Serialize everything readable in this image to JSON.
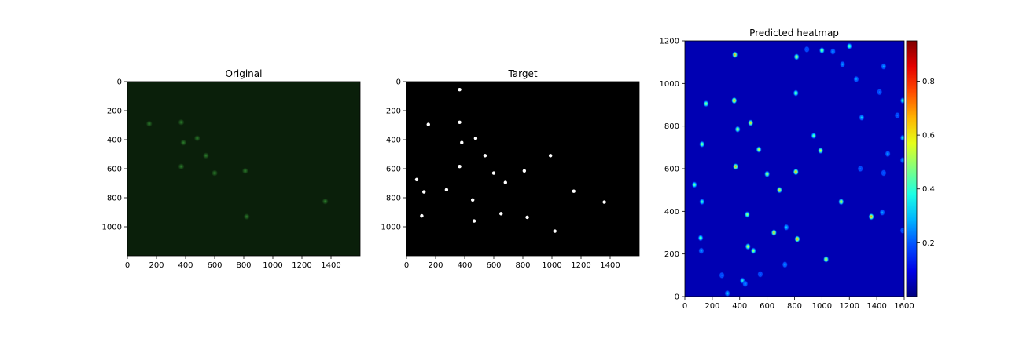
{
  "chart_data": [
    {
      "type": "image",
      "title": "Original",
      "xlim": [
        0,
        1600
      ],
      "ylim": [
        1200,
        0
      ],
      "x_ticks": [
        0,
        200,
        400,
        600,
        800,
        1000,
        1200,
        1400
      ],
      "y_ticks": [
        0,
        200,
        400,
        600,
        800,
        1000
      ],
      "background_color": "#0a1f0a",
      "spot_color": "#2f8a2f",
      "points": [
        {
          "x": 370,
          "y": 280
        },
        {
          "x": 385,
          "y": 420
        },
        {
          "x": 480,
          "y": 390
        },
        {
          "x": 370,
          "y": 585
        },
        {
          "x": 810,
          "y": 615
        },
        {
          "x": 820,
          "y": 930
        },
        {
          "x": 1360,
          "y": 825
        },
        {
          "x": 150,
          "y": 290
        },
        {
          "x": 600,
          "y": 630
        },
        {
          "x": 540,
          "y": 510
        }
      ]
    },
    {
      "type": "scatter",
      "title": "Target",
      "xlim": [
        0,
        1600
      ],
      "ylim": [
        1200,
        0
      ],
      "x_ticks": [
        0,
        200,
        400,
        600,
        800,
        1000,
        1200,
        1400
      ],
      "y_ticks": [
        0,
        200,
        400,
        600,
        800,
        1000
      ],
      "background_color": "#000000",
      "point_color": "#ffffff",
      "points": [
        {
          "x": 365,
          "y": 55
        },
        {
          "x": 150,
          "y": 295
        },
        {
          "x": 365,
          "y": 280
        },
        {
          "x": 380,
          "y": 420
        },
        {
          "x": 475,
          "y": 390
        },
        {
          "x": 540,
          "y": 510
        },
        {
          "x": 365,
          "y": 585
        },
        {
          "x": 600,
          "y": 630
        },
        {
          "x": 810,
          "y": 615
        },
        {
          "x": 990,
          "y": 510
        },
        {
          "x": 680,
          "y": 695
        },
        {
          "x": 70,
          "y": 675
        },
        {
          "x": 120,
          "y": 760
        },
        {
          "x": 275,
          "y": 745
        },
        {
          "x": 455,
          "y": 815
        },
        {
          "x": 1150,
          "y": 755
        },
        {
          "x": 1360,
          "y": 830
        },
        {
          "x": 105,
          "y": 925
        },
        {
          "x": 650,
          "y": 910
        },
        {
          "x": 830,
          "y": 935
        },
        {
          "x": 465,
          "y": 960
        },
        {
          "x": 1020,
          "y": 1030
        }
      ]
    },
    {
      "type": "heatmap",
      "title": "Predicted heatmap",
      "xlim": [
        0,
        1600
      ],
      "ylim": [
        0,
        1200
      ],
      "x_ticks": [
        0,
        200,
        400,
        600,
        800,
        1000,
        1200,
        1400,
        1600
      ],
      "y_ticks": [
        0,
        200,
        400,
        600,
        800,
        1000,
        1200
      ],
      "colormap": "jet",
      "colorbar_range": [
        0.0,
        0.95
      ],
      "colorbar_ticks": [
        "0.2",
        "0.4",
        "0.6",
        "0.8"
      ],
      "colorbar_tick_values": [
        0.2,
        0.4,
        0.6,
        0.8
      ],
      "points": [
        {
          "x": 365,
          "y": 1135,
          "v": 0.7
        },
        {
          "x": 155,
          "y": 905,
          "v": 0.55
        },
        {
          "x": 360,
          "y": 920,
          "v": 0.75
        },
        {
          "x": 385,
          "y": 785,
          "v": 0.6
        },
        {
          "x": 480,
          "y": 815,
          "v": 0.65
        },
        {
          "x": 125,
          "y": 715,
          "v": 0.55
        },
        {
          "x": 540,
          "y": 690,
          "v": 0.6
        },
        {
          "x": 370,
          "y": 610,
          "v": 0.7
        },
        {
          "x": 600,
          "y": 575,
          "v": 0.6
        },
        {
          "x": 810,
          "y": 585,
          "v": 0.75
        },
        {
          "x": 690,
          "y": 500,
          "v": 0.65
        },
        {
          "x": 70,
          "y": 525,
          "v": 0.5
        },
        {
          "x": 125,
          "y": 445,
          "v": 0.45
        },
        {
          "x": 455,
          "y": 385,
          "v": 0.55
        },
        {
          "x": 1140,
          "y": 445,
          "v": 0.65
        },
        {
          "x": 1360,
          "y": 375,
          "v": 0.75
        },
        {
          "x": 115,
          "y": 275,
          "v": 0.5
        },
        {
          "x": 650,
          "y": 300,
          "v": 0.7
        },
        {
          "x": 820,
          "y": 270,
          "v": 0.75
        },
        {
          "x": 460,
          "y": 235,
          "v": 0.6
        },
        {
          "x": 500,
          "y": 215,
          "v": 0.55
        },
        {
          "x": 1030,
          "y": 175,
          "v": 0.65
        },
        {
          "x": 815,
          "y": 1125,
          "v": 0.6
        },
        {
          "x": 1000,
          "y": 1155,
          "v": 0.55
        },
        {
          "x": 1200,
          "y": 1175,
          "v": 0.5
        },
        {
          "x": 810,
          "y": 955,
          "v": 0.55
        },
        {
          "x": 940,
          "y": 755,
          "v": 0.5
        },
        {
          "x": 990,
          "y": 685,
          "v": 0.6
        },
        {
          "x": 1590,
          "y": 920,
          "v": 0.45
        },
        {
          "x": 1590,
          "y": 745,
          "v": 0.4
        },
        {
          "x": 740,
          "y": 325,
          "v": 0.35
        },
        {
          "x": 420,
          "y": 75,
          "v": 0.4
        },
        {
          "x": 310,
          "y": 15,
          "v": 0.35
        },
        {
          "x": 1250,
          "y": 1020,
          "v": 0.3
        },
        {
          "x": 1290,
          "y": 840,
          "v": 0.35
        },
        {
          "x": 1440,
          "y": 395,
          "v": 0.3
        },
        {
          "x": 730,
          "y": 150,
          "v": 0.3
        },
        {
          "x": 440,
          "y": 60,
          "v": 0.3
        },
        {
          "x": 120,
          "y": 215,
          "v": 0.3
        },
        {
          "x": 270,
          "y": 100,
          "v": 0.25
        },
        {
          "x": 550,
          "y": 105,
          "v": 0.25
        },
        {
          "x": 1080,
          "y": 1150,
          "v": 0.3
        },
        {
          "x": 1150,
          "y": 1090,
          "v": 0.3
        },
        {
          "x": 1450,
          "y": 1080,
          "v": 0.3
        },
        {
          "x": 1420,
          "y": 960,
          "v": 0.25
        },
        {
          "x": 1550,
          "y": 850,
          "v": 0.25
        },
        {
          "x": 1480,
          "y": 670,
          "v": 0.3
        },
        {
          "x": 1280,
          "y": 600,
          "v": 0.25
        },
        {
          "x": 1450,
          "y": 580,
          "v": 0.25
        },
        {
          "x": 1590,
          "y": 640,
          "v": 0.3
        },
        {
          "x": 1590,
          "y": 310,
          "v": 0.25
        },
        {
          "x": 890,
          "y": 1160,
          "v": 0.25
        }
      ]
    }
  ]
}
